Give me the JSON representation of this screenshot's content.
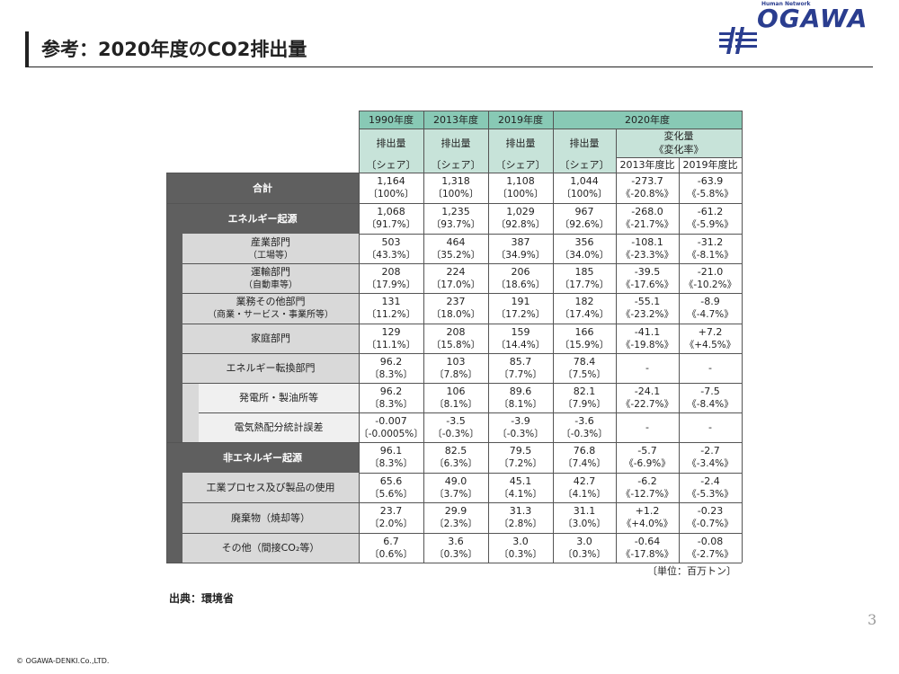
{
  "header": {
    "title": "参考：2020年度のCO2排出量",
    "logo_small": "Human Network",
    "logo_word": "OGAWA"
  },
  "table": {
    "col_headers": {
      "y1990": "1990年度",
      "y2013": "2013年度",
      "y2019": "2019年度",
      "y2020": "2020年度",
      "emissions": "排出量",
      "share": "〔シェア〕",
      "change": "変化量",
      "change_rate": "《変化率》",
      "vs2013": "2013年度比",
      "vs2019": "2019年度比"
    },
    "rows": [
      {
        "label": "合計",
        "sub": "",
        "v": [
          [
            "1,164",
            "〔100%〕"
          ],
          [
            "1,318",
            "〔100%〕"
          ],
          [
            "1,108",
            "〔100%〕"
          ],
          [
            "1,044",
            "〔100%〕"
          ],
          [
            "-273.7",
            "《-20.8%》"
          ],
          [
            "-63.9",
            "《-5.8%》"
          ]
        ]
      },
      {
        "label": "エネルギー起源",
        "sub": "",
        "v": [
          [
            "1,068",
            "〔91.7%〕"
          ],
          [
            "1,235",
            "〔93.7%〕"
          ],
          [
            "1,029",
            "〔92.8%〕"
          ],
          [
            "967",
            "〔92.6%〕"
          ],
          [
            "-268.0",
            "《-21.7%》"
          ],
          [
            "-61.2",
            "《-5.9%》"
          ]
        ]
      },
      {
        "label": "産業部門",
        "sub": "（工場等）",
        "v": [
          [
            "503",
            "〔43.3%〕"
          ],
          [
            "464",
            "〔35.2%〕"
          ],
          [
            "387",
            "〔34.9%〕"
          ],
          [
            "356",
            "〔34.0%〕"
          ],
          [
            "-108.1",
            "《-23.3%》"
          ],
          [
            "-31.2",
            "《-8.1%》"
          ]
        ]
      },
      {
        "label": "運輸部門",
        "sub": "（自動車等）",
        "v": [
          [
            "208",
            "〔17.9%〕"
          ],
          [
            "224",
            "〔17.0%〕"
          ],
          [
            "206",
            "〔18.6%〕"
          ],
          [
            "185",
            "〔17.7%〕"
          ],
          [
            "-39.5",
            "《-17.6%》"
          ],
          [
            "-21.0",
            "《-10.2%》"
          ]
        ]
      },
      {
        "label": "業務その他部門",
        "sub": "（商業・サービス・事業所等）",
        "v": [
          [
            "131",
            "〔11.2%〕"
          ],
          [
            "237",
            "〔18.0%〕"
          ],
          [
            "191",
            "〔17.2%〕"
          ],
          [
            "182",
            "〔17.4%〕"
          ],
          [
            "-55.1",
            "《-23.2%》"
          ],
          [
            "-8.9",
            "《-4.7%》"
          ]
        ]
      },
      {
        "label": "家庭部門",
        "sub": "",
        "v": [
          [
            "129",
            "〔11.1%〕"
          ],
          [
            "208",
            "〔15.8%〕"
          ],
          [
            "159",
            "〔14.4%〕"
          ],
          [
            "166",
            "〔15.9%〕"
          ],
          [
            "-41.1",
            "《-19.8%》"
          ],
          [
            "+7.2",
            "《+4.5%》"
          ]
        ]
      },
      {
        "label": "エネルギー転換部門",
        "sub": "",
        "v": [
          [
            "96.2",
            "〔8.3%〕"
          ],
          [
            "103",
            "〔7.8%〕"
          ],
          [
            "85.7",
            "〔7.7%〕"
          ],
          [
            "78.4",
            "〔7.5%〕"
          ],
          [
            "-",
            ""
          ],
          [
            "-",
            ""
          ]
        ]
      },
      {
        "label": "発電所・製油所等",
        "sub": "",
        "v": [
          [
            "96.2",
            "〔8.3%〕"
          ],
          [
            "106",
            "〔8.1%〕"
          ],
          [
            "89.6",
            "〔8.1%〕"
          ],
          [
            "82.1",
            "〔7.9%〕"
          ],
          [
            "-24.1",
            "《-22.7%》"
          ],
          [
            "-7.5",
            "《-8.4%》"
          ]
        ]
      },
      {
        "label": "電気熱配分統計誤差",
        "sub": "",
        "v": [
          [
            "-0.007",
            "〔-0.0005%〕"
          ],
          [
            "-3.5",
            "〔-0.3%〕"
          ],
          [
            "-3.9",
            "〔-0.3%〕"
          ],
          [
            "-3.6",
            "〔-0.3%〕"
          ],
          [
            "-",
            ""
          ],
          [
            "-",
            ""
          ]
        ]
      },
      {
        "label": "非エネルギー起源",
        "sub": "",
        "v": [
          [
            "96.1",
            "〔8.3%〕"
          ],
          [
            "82.5",
            "〔6.3%〕"
          ],
          [
            "79.5",
            "〔7.2%〕"
          ],
          [
            "76.8",
            "〔7.4%〕"
          ],
          [
            "-5.7",
            "《-6.9%》"
          ],
          [
            "-2.7",
            "《-3.4%》"
          ]
        ]
      },
      {
        "label": "工業プロセス及び製品の使用",
        "sub": "",
        "v": [
          [
            "65.6",
            "〔5.6%〕"
          ],
          [
            "49.0",
            "〔3.7%〕"
          ],
          [
            "45.1",
            "〔4.1%〕"
          ],
          [
            "42.7",
            "〔4.1%〕"
          ],
          [
            "-6.2",
            "《-12.7%》"
          ],
          [
            "-2.4",
            "《-5.3%》"
          ]
        ]
      },
      {
        "label": "廃棄物（焼却等）",
        "sub": "",
        "v": [
          [
            "23.7",
            "〔2.0%〕"
          ],
          [
            "29.9",
            "〔2.3%〕"
          ],
          [
            "31.3",
            "〔2.8%〕"
          ],
          [
            "31.1",
            "〔3.0%〕"
          ],
          [
            "+1.2",
            "《+4.0%》"
          ],
          [
            "-0.23",
            "《-0.7%》"
          ]
        ]
      },
      {
        "label": "その他（間接CO₂等）",
        "sub": "",
        "v": [
          [
            "6.7",
            "〔0.6%〕"
          ],
          [
            "3.6",
            "〔0.3%〕"
          ],
          [
            "3.0",
            "〔0.3%〕"
          ],
          [
            "3.0",
            "〔0.3%〕"
          ],
          [
            "-0.64",
            "《-17.8%》"
          ],
          [
            "-0.08",
            "《-2.7%》"
          ]
        ]
      }
    ],
    "unit": "〔単位：百万トン〕"
  },
  "source": "出典：環境省",
  "page_number": "3",
  "copyright": "© OGAWA-DENKI.Co.,LTD."
}
